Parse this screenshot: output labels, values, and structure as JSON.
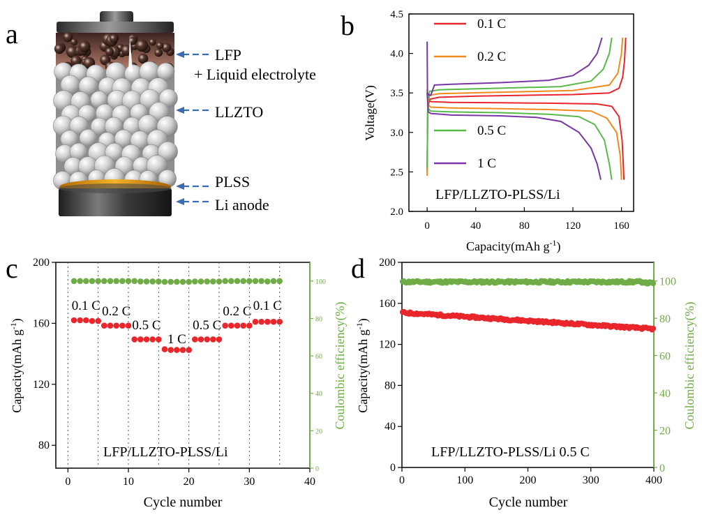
{
  "panels": {
    "a": "a",
    "b": "b",
    "c": "c",
    "d": "d"
  },
  "colors": {
    "red": "#e8262b",
    "green": "#6fac46",
    "orange": "#f28a1b",
    "lightgreen": "#57b947",
    "purple": "#7a35a8",
    "arrow": "#3b6bb0"
  },
  "schematic": {
    "labels": [
      {
        "key": "lfp",
        "text": "LFP"
      },
      {
        "key": "liq",
        "text": "+ Liquid electrolyte"
      },
      {
        "key": "llzto",
        "text": "LLZTO"
      },
      {
        "key": "plss",
        "text": "PLSS"
      },
      {
        "key": "anode",
        "text": "Li anode"
      }
    ]
  },
  "chart_data": [
    {
      "panel": "b",
      "type": "line",
      "xlabel": "Capacity(mAh g",
      "xlabel_sup": "-1",
      "xlabel_end": ")",
      "ylabel": "Voltage(V)",
      "xlim": [
        -15,
        170
      ],
      "ylim": [
        2.0,
        4.5
      ],
      "xticks": [
        0,
        40,
        80,
        120,
        160
      ],
      "yticks": [
        2.0,
        2.5,
        3.0,
        3.5,
        4.0,
        4.5
      ],
      "ytick_labels": [
        "2.0",
        "2.5",
        "3.0",
        "3.5",
        "4.0",
        "4.5"
      ],
      "annotation": "LFP/LLZTO-PLSS/Li",
      "legend": [
        "0.1 C",
        "0.2 C",
        "0.5 C",
        "1 C"
      ],
      "series": [
        {
          "name": "0.1 C",
          "color": "#e8262b",
          "charge": [
            [
              0,
              2.5
            ],
            [
              0.5,
              3.3
            ],
            [
              2,
              3.42
            ],
            [
              10,
              3.445
            ],
            [
              40,
              3.46
            ],
            [
              80,
              3.47
            ],
            [
              120,
              3.48
            ],
            [
              150,
              3.5
            ],
            [
              158,
              3.56
            ],
            [
              161,
              3.7
            ],
            [
              162.5,
              3.9
            ],
            [
              163.5,
              4.2
            ]
          ],
          "discharge": [
            [
              0,
              3.5
            ],
            [
              1,
              3.42
            ],
            [
              3,
              3.39
            ],
            [
              20,
              3.38
            ],
            [
              60,
              3.375
            ],
            [
              100,
              3.37
            ],
            [
              140,
              3.36
            ],
            [
              152,
              3.33
            ],
            [
              158,
              3.2
            ],
            [
              160.5,
              2.9
            ],
            [
              161.5,
              2.6
            ],
            [
              162,
              2.4
            ]
          ]
        },
        {
          "name": "0.2 C",
          "color": "#f28a1b",
          "charge": [
            [
              0,
              2.45
            ],
            [
              0.5,
              3.35
            ],
            [
              2,
              3.47
            ],
            [
              10,
              3.49
            ],
            [
              60,
              3.51
            ],
            [
              120,
              3.53
            ],
            [
              150,
              3.6
            ],
            [
              157,
              3.75
            ],
            [
              160,
              4.0
            ],
            [
              161,
              4.2
            ]
          ],
          "discharge": [
            [
              0,
              3.5
            ],
            [
              1,
              3.35
            ],
            [
              3,
              3.32
            ],
            [
              20,
              3.31
            ],
            [
              60,
              3.3
            ],
            [
              100,
              3.29
            ],
            [
              135,
              3.27
            ],
            [
              148,
              3.18
            ],
            [
              156,
              3.0
            ],
            [
              159,
              2.7
            ],
            [
              160,
              2.4
            ]
          ]
        },
        {
          "name": "0.5 C",
          "color": "#57b947",
          "charge": [
            [
              0,
              2.55
            ],
            [
              0.5,
              3.4
            ],
            [
              2,
              3.52
            ],
            [
              10,
              3.54
            ],
            [
              60,
              3.56
            ],
            [
              110,
              3.58
            ],
            [
              135,
              3.65
            ],
            [
              145,
              3.8
            ],
            [
              150,
              4.0
            ],
            [
              152,
              4.2
            ]
          ],
          "discharge": [
            [
              0,
              3.55
            ],
            [
              1,
              3.3
            ],
            [
              3,
              3.27
            ],
            [
              20,
              3.26
            ],
            [
              60,
              3.25
            ],
            [
              100,
              3.23
            ],
            [
              125,
              3.2
            ],
            [
              138,
              3.1
            ],
            [
              146,
              2.9
            ],
            [
              150,
              2.6
            ],
            [
              152,
              2.4
            ]
          ]
        },
        {
          "name": "1 C",
          "color": "#7a35a8",
          "charge": [
            [
              0,
              4.15
            ],
            [
              0.3,
              3.5
            ],
            [
              1,
              3.48
            ],
            [
              3,
              3.47
            ],
            [
              6,
              3.6
            ],
            [
              20,
              3.61
            ],
            [
              60,
              3.63
            ],
            [
              100,
              3.66
            ],
            [
              120,
              3.72
            ],
            [
              133,
              3.85
            ],
            [
              140,
              4.0
            ],
            [
              144,
              4.2
            ]
          ],
          "discharge": [
            [
              0,
              3.5
            ],
            [
              1,
              3.26
            ],
            [
              3,
              3.24
            ],
            [
              20,
              3.22
            ],
            [
              60,
              3.21
            ],
            [
              90,
              3.19
            ],
            [
              110,
              3.14
            ],
            [
              125,
              3.0
            ],
            [
              135,
              2.8
            ],
            [
              140,
              2.6
            ],
            [
              143,
              2.4
            ]
          ]
        }
      ]
    },
    {
      "panel": "c",
      "type": "scatter",
      "xlabel": "Cycle number",
      "ylabel": "Capacity(mAh g",
      "ylabel_sup": "-1",
      "ylabel_end": ")",
      "y2label": "Coulombic efficiency(%)",
      "xlim": [
        -2,
        40
      ],
      "ylim": [
        65,
        200
      ],
      "y2lim": [
        0,
        110
      ],
      "xticks": [
        0,
        10,
        20,
        30,
        40
      ],
      "yticks": [
        80,
        120,
        160,
        200
      ],
      "y2ticks": [
        0,
        20,
        40,
        60,
        80,
        100
      ],
      "vlines": [
        0,
        5,
        10,
        15,
        20,
        25,
        30,
        35
      ],
      "annotation": "LFP/LLZTO-PLSS/Li",
      "rate_labels": [
        "0.1 C",
        "0.2 C",
        "0.5 C",
        "1 C",
        "0.5 C",
        "0.2 C",
        "0.1 C"
      ],
      "capacity": [
        162,
        162,
        162,
        161.5,
        161.5,
        158.5,
        158.5,
        158.5,
        158.5,
        158.5,
        149.5,
        149.5,
        149.5,
        149.5,
        149.5,
        143,
        142.5,
        142.5,
        142.5,
        142.5,
        149.5,
        149.5,
        149.5,
        149.5,
        149.5,
        158.5,
        158.5,
        158.5,
        158.5,
        158.5,
        161,
        161,
        161,
        161,
        161
      ],
      "efficiency": [
        100,
        100,
        100,
        100,
        100,
        100,
        100,
        100,
        100,
        100,
        100,
        99.8,
        99.8,
        99.8,
        99.8,
        99.6,
        99.6,
        99.6,
        99.6,
        99.6,
        99.8,
        99.8,
        99.8,
        99.8,
        99.8,
        100,
        100,
        100,
        100,
        100,
        100,
        100,
        99.8,
        100,
        100
      ]
    },
    {
      "panel": "d",
      "type": "scatter",
      "xlabel": "Cycle number",
      "ylabel": "Capacity(mAh g",
      "ylabel_sup": "-1",
      "ylabel_end": ")",
      "y2label": "Coulombic efficiency(%)",
      "xlim": [
        0,
        400
      ],
      "ylim": [
        0,
        200
      ],
      "y2lim": [
        0,
        110
      ],
      "xticks": [
        0,
        100,
        200,
        300,
        400
      ],
      "yticks": [
        0,
        40,
        80,
        120,
        160,
        200
      ],
      "y2ticks": [
        0,
        20,
        40,
        60,
        80,
        100
      ],
      "annotation": "LFP/LLZTO-PLSS/Li 0.5 C",
      "capacity_start": 151,
      "capacity_end": 135,
      "cycles": 400,
      "efficiency_mean": 99.5
    }
  ]
}
